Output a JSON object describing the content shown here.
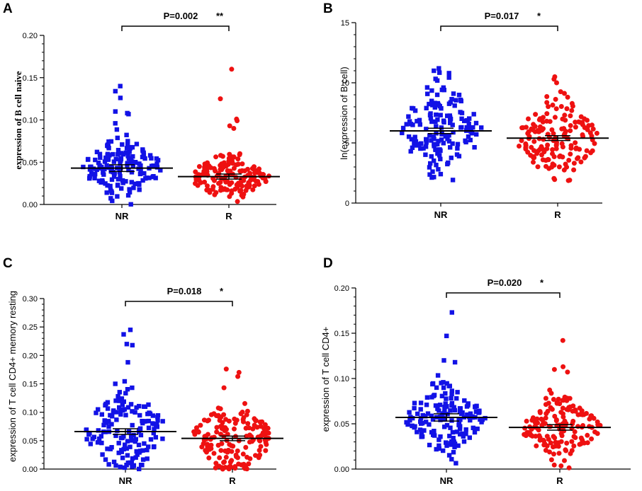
{
  "colors": {
    "NR": "#1212e6",
    "R": "#ee1111",
    "axis": "#000000"
  },
  "chart_data": [
    {
      "panel": "A",
      "type": "scatter",
      "categories": [
        "NR",
        "R"
      ],
      "ylabel": "expression of B cell naive",
      "ylim": [
        0,
        0.2
      ],
      "yticks": [
        0,
        0.05,
        0.1,
        0.15,
        0.2
      ],
      "ytick_labels": [
        "0.00",
        "0.05",
        "0.10",
        "0.15",
        "0.20"
      ],
      "comparison": {
        "p_text": "P=0.002",
        "stars": "**"
      },
      "series": [
        {
          "name": "NR",
          "mean": 0.043,
          "sem": 0.004,
          "n": 160,
          "spread": 0.017,
          "min": 0.0,
          "max": 0.14,
          "outliers": [
            0.14,
            0.134,
            0.126,
            0.11,
            0.108
          ]
        },
        {
          "name": "R",
          "mean": 0.033,
          "sem": 0.003,
          "n": 160,
          "spread": 0.013,
          "min": 0.002,
          "max": 0.16,
          "outliers": [
            0.16,
            0.125,
            0.101,
            0.099,
            0.093,
            0.09
          ]
        }
      ]
    },
    {
      "panel": "B",
      "type": "scatter",
      "categories": [
        "NR",
        "R"
      ],
      "ylabel": "ln(expression of B cell)",
      "ylim": [
        0,
        15
      ],
      "yticks": [
        0,
        5,
        10,
        15
      ],
      "ytick_labels": [
        "0",
        "5",
        "10",
        "15"
      ],
      "comparison": {
        "p_text": "P=0.017",
        "stars": "*"
      },
      "series": [
        {
          "name": "NR",
          "mean": 6.0,
          "sem": 0.22,
          "n": 160,
          "spread": 2.0,
          "min": 1.7,
          "max": 11.2,
          "outliers": [
            11.2,
            11.0,
            10.8
          ]
        },
        {
          "name": "R",
          "mean": 5.4,
          "sem": 0.2,
          "n": 160,
          "spread": 1.7,
          "min": 1.7,
          "max": 10.5,
          "outliers": [
            10.5,
            10.3,
            10.0
          ]
        }
      ]
    },
    {
      "panel": "C",
      "type": "scatter",
      "categories": [
        "NR",
        "R"
      ],
      "ylabel": "expression of T cell CD4+ memory resting",
      "ylim": [
        0,
        0.3
      ],
      "yticks": [
        0,
        0.05,
        0.1,
        0.15,
        0.2,
        0.25,
        0.3
      ],
      "ytick_labels": [
        "0.00",
        "0.05",
        "0.10",
        "0.15",
        "0.20",
        "0.25",
        "0.30"
      ],
      "comparison": {
        "p_text": "P=0.018",
        "stars": "*"
      },
      "series": [
        {
          "name": "NR",
          "mean": 0.066,
          "sem": 0.005,
          "n": 160,
          "spread": 0.038,
          "min": 0.0,
          "max": 0.245,
          "outliers": [
            0.245,
            0.237,
            0.22,
            0.218
          ]
        },
        {
          "name": "R",
          "mean": 0.054,
          "sem": 0.004,
          "n": 160,
          "spread": 0.032,
          "min": 0.0,
          "max": 0.176,
          "outliers": [
            0.176,
            0.17,
            0.163
          ]
        }
      ]
    },
    {
      "panel": "D",
      "type": "scatter",
      "categories": [
        "NR",
        "R"
      ],
      "ylabel": "expression of T cell CD4+",
      "ylim": [
        0,
        0.2
      ],
      "yticks": [
        0,
        0.05,
        0.1,
        0.15,
        0.2
      ],
      "ytick_labels": [
        "0.00",
        "0.05",
        "0.10",
        "0.15",
        "0.20"
      ],
      "comparison": {
        "p_text": "P=0.020",
        "stars": "*"
      },
      "series": [
        {
          "name": "NR",
          "mean": 0.057,
          "sem": 0.004,
          "n": 160,
          "spread": 0.02,
          "min": 0.005,
          "max": 0.173,
          "outliers": [
            0.173,
            0.147,
            0.12,
            0.118
          ]
        },
        {
          "name": "R",
          "mean": 0.046,
          "sem": 0.003,
          "n": 160,
          "spread": 0.017,
          "min": 0.0,
          "max": 0.142,
          "outliers": [
            0.142,
            0.113,
            0.11
          ]
        }
      ]
    }
  ]
}
